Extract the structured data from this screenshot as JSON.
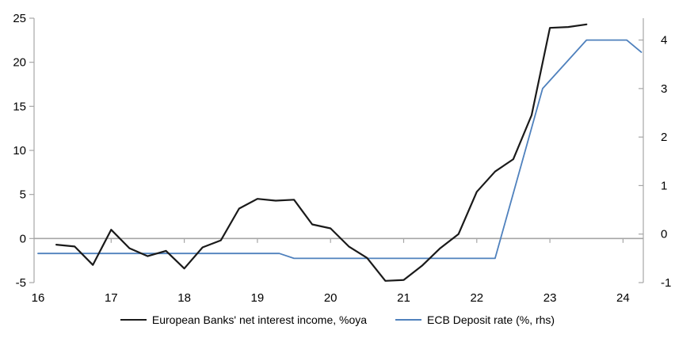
{
  "chart_data": {
    "type": "line",
    "title": "",
    "grid": "zero-line-only",
    "legend_position": "bottom",
    "x_axis": {
      "ticks": [
        16,
        17,
        18,
        19,
        20,
        21,
        22,
        23,
        24
      ],
      "range": [
        16,
        24.3
      ]
    },
    "left_axis": {
      "ticks": [
        25,
        20,
        15,
        10,
        5,
        0,
        -5
      ],
      "range": [
        -5,
        25
      ]
    },
    "right_axis": {
      "ticks": [
        4,
        3,
        2,
        1,
        0,
        -1
      ],
      "range": [
        -1,
        4.45
      ]
    },
    "series": [
      {
        "name": "European Banks' net interest income, %oya",
        "axis": "left",
        "color": "#1a1a1a",
        "stroke_width": 2.2,
        "points": [
          [
            16.25,
            -0.7
          ],
          [
            16.5,
            -0.9
          ],
          [
            16.75,
            -3.0
          ],
          [
            17.0,
            1.0
          ],
          [
            17.25,
            -1.1
          ],
          [
            17.5,
            -2.0
          ],
          [
            17.75,
            -1.4
          ],
          [
            18.0,
            -3.4
          ],
          [
            18.25,
            -1.0
          ],
          [
            18.5,
            -0.2
          ],
          [
            18.75,
            3.4
          ],
          [
            19.0,
            4.5
          ],
          [
            19.25,
            4.3
          ],
          [
            19.5,
            4.4
          ],
          [
            19.75,
            1.6
          ],
          [
            20.0,
            1.15
          ],
          [
            20.25,
            -0.9
          ],
          [
            20.5,
            -2.2
          ],
          [
            20.75,
            -4.8
          ],
          [
            21.0,
            -4.7
          ],
          [
            21.25,
            -3.1
          ],
          [
            21.5,
            -1.1
          ],
          [
            21.75,
            0.5
          ],
          [
            22.0,
            5.3
          ],
          [
            22.25,
            7.6
          ],
          [
            22.5,
            9.0
          ],
          [
            22.75,
            14.0
          ],
          [
            23.0,
            23.9
          ],
          [
            23.25,
            24.0
          ],
          [
            23.5,
            24.3
          ]
        ]
      },
      {
        "name": "ECB Deposit rate (%, rhs)",
        "axis": "right",
        "color": "#4f81bd",
        "stroke_width": 1.8,
        "points": [
          [
            16.0,
            -0.4
          ],
          [
            19.3,
            -0.4
          ],
          [
            19.5,
            -0.5
          ],
          [
            22.25,
            -0.5
          ],
          [
            22.9,
            3.0
          ],
          [
            23.5,
            4.0
          ],
          [
            24.05,
            4.0
          ],
          [
            24.25,
            3.75
          ]
        ]
      }
    ],
    "colors": {
      "axis": "#a6a6a6",
      "zero_line": "#a6a6a6",
      "text": "#000000"
    }
  }
}
